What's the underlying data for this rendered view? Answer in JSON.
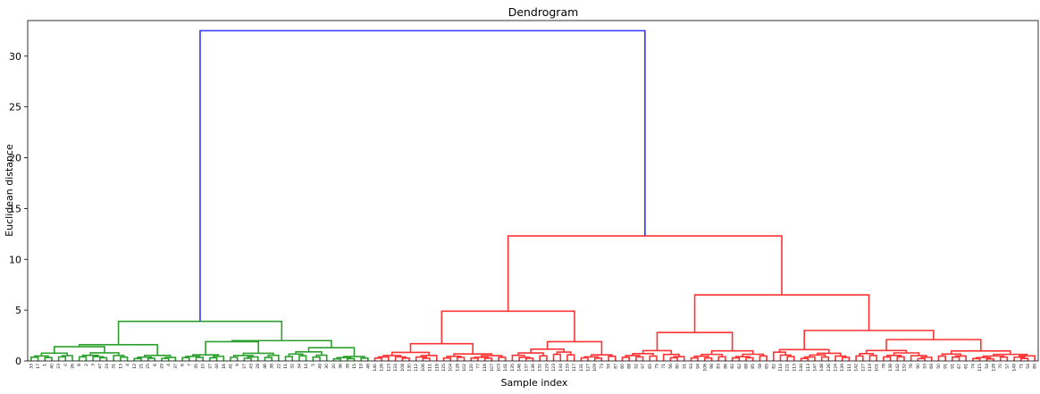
{
  "chart_data": {
    "type": "dendrogram",
    "title": "Dendrogram",
    "xlabel": "Sample index",
    "ylabel": "Euclidean distance",
    "ylim": [
      0,
      33.5
    ],
    "yticks": [
      0,
      5,
      10,
      15,
      20,
      25,
      30
    ],
    "grid": false,
    "colors": {
      "cluster_a": "#2ca02c",
      "cluster_b": "#ff3333",
      "root": "#3333ff"
    },
    "cluster_a_leaves": [
      "33",
      "17",
      "1",
      "40",
      "23",
      "0",
      "26",
      "8",
      "2",
      "3",
      "47",
      "24",
      "31",
      "13",
      "4",
      "12",
      "21",
      "25",
      "6",
      "29",
      "4",
      "37",
      "6",
      "7",
      "35",
      "10",
      "27",
      "44",
      "16",
      "41",
      "9",
      "27",
      "43",
      "28",
      "46",
      "38",
      "22",
      "11",
      "32",
      "34",
      "14",
      "5",
      "49",
      "30",
      "20",
      "36",
      "38",
      "15",
      "19",
      "48"
    ],
    "cluster_b_leaves": [
      "140",
      "126",
      "123",
      "124",
      "108",
      "130",
      "112",
      "106",
      "111",
      "118",
      "125",
      "104",
      "128",
      "102",
      "120",
      "77",
      "116",
      "107",
      "103",
      "141",
      "135",
      "146",
      "137",
      "136",
      "132",
      "129",
      "123",
      "134",
      "133",
      "117",
      "131",
      "127",
      "109",
      "73",
      "59",
      "87",
      "60",
      "68",
      "52",
      "97",
      "65",
      "75",
      "71",
      "56",
      "80",
      "51",
      "93",
      "94",
      "106",
      "98",
      "83",
      "86",
      "82",
      "62",
      "68",
      "85",
      "58",
      "65",
      "82",
      "114",
      "121",
      "113",
      "144",
      "113",
      "147",
      "148",
      "126",
      "124",
      "139",
      "111",
      "142",
      "127",
      "119",
      "101",
      "78",
      "138",
      "142",
      "132",
      "76",
      "90",
      "53",
      "69",
      "50",
      "91",
      "91",
      "67",
      "61",
      "74",
      "115",
      "54",
      "128",
      "70",
      "57",
      "149",
      "71",
      "54",
      "89"
    ],
    "top_merges": [
      {
        "name": "cluster-a-root",
        "height": 3.9
      },
      {
        "name": "cluster-b-root",
        "height": 12.3
      },
      {
        "name": "cluster-b-left",
        "height": 4.9
      },
      {
        "name": "cluster-b-right",
        "height": 6.5
      },
      {
        "name": "root",
        "height": 32.5
      }
    ]
  }
}
